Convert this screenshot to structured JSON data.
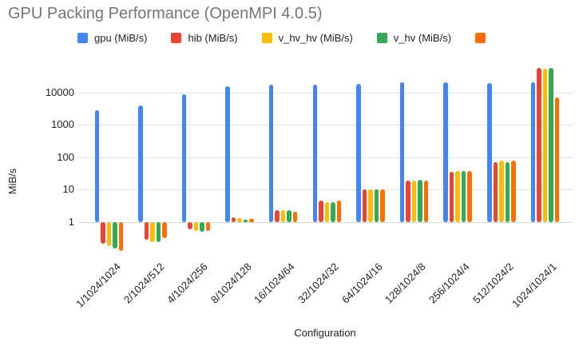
{
  "title": "GPU Packing Performance (OpenMPI 4.0.5)",
  "axes": {
    "x_title": "Configuration",
    "y_title": "MiB/s"
  },
  "legend": {
    "note": "fifth legend item label is cut off at image edge",
    "items": [
      {
        "label": "gpu (MiB/s)",
        "color": "#4285F4"
      },
      {
        "label": "hib (MiB/s)",
        "color": "#EA4335"
      },
      {
        "label": "v_hv_hv (MiB/s)",
        "color": "#FBBC04"
      },
      {
        "label": "v_hv (MiB/s)",
        "color": "#34A853"
      },
      {
        "label": "",
        "color": "#FF6D00"
      }
    ]
  },
  "chart_data": {
    "type": "bar",
    "title": "GPU Packing Performance (OpenMPI 4.0.5)",
    "xlabel": "Configuration",
    "ylabel": "MiB/s",
    "y_scale": "log",
    "y_ticks": [
      1,
      10,
      100,
      1000,
      10000
    ],
    "ylim_visible": [
      0.1,
      60000
    ],
    "grid": true,
    "legend_position": "top",
    "categories": [
      "1/1024/1024",
      "2/1024/512",
      "4/1024/256",
      "8/1024/128",
      "16/1024/64",
      "32/1024/32",
      "64/1024/16",
      "128/1024/8",
      "256/1024/4",
      "512/1024/2",
      "1024/1024/1"
    ],
    "series": [
      {
        "name": "gpu (MiB/s)",
        "color": "#4285F4",
        "values": [
          2750,
          4000,
          8900,
          15000,
          17000,
          17000,
          18000,
          20000,
          20000,
          19500,
          20000
        ]
      },
      {
        "name": "hib (MiB/s)",
        "color": "#EA4335",
        "values": [
          0.22,
          0.28,
          0.6,
          1.4,
          2.3,
          4.5,
          10,
          19,
          35,
          72,
          58000
        ]
      },
      {
        "name": "v_hv_hv (MiB/s)",
        "color": "#FBBC04",
        "values": [
          0.18,
          0.24,
          0.55,
          1.3,
          2.3,
          4.1,
          10,
          19,
          37,
          80,
          55000
        ]
      },
      {
        "name": "v_hv (MiB/s)",
        "color": "#34A853",
        "values": [
          0.15,
          0.24,
          0.5,
          1.2,
          2.3,
          4.1,
          10.5,
          20,
          37,
          72,
          58000
        ]
      },
      {
        "name": "",
        "color": "#FF6D00",
        "values": [
          0.13,
          0.33,
          0.55,
          1.25,
          2.1,
          4.7,
          10,
          19,
          37,
          80,
          6800
        ]
      }
    ]
  }
}
